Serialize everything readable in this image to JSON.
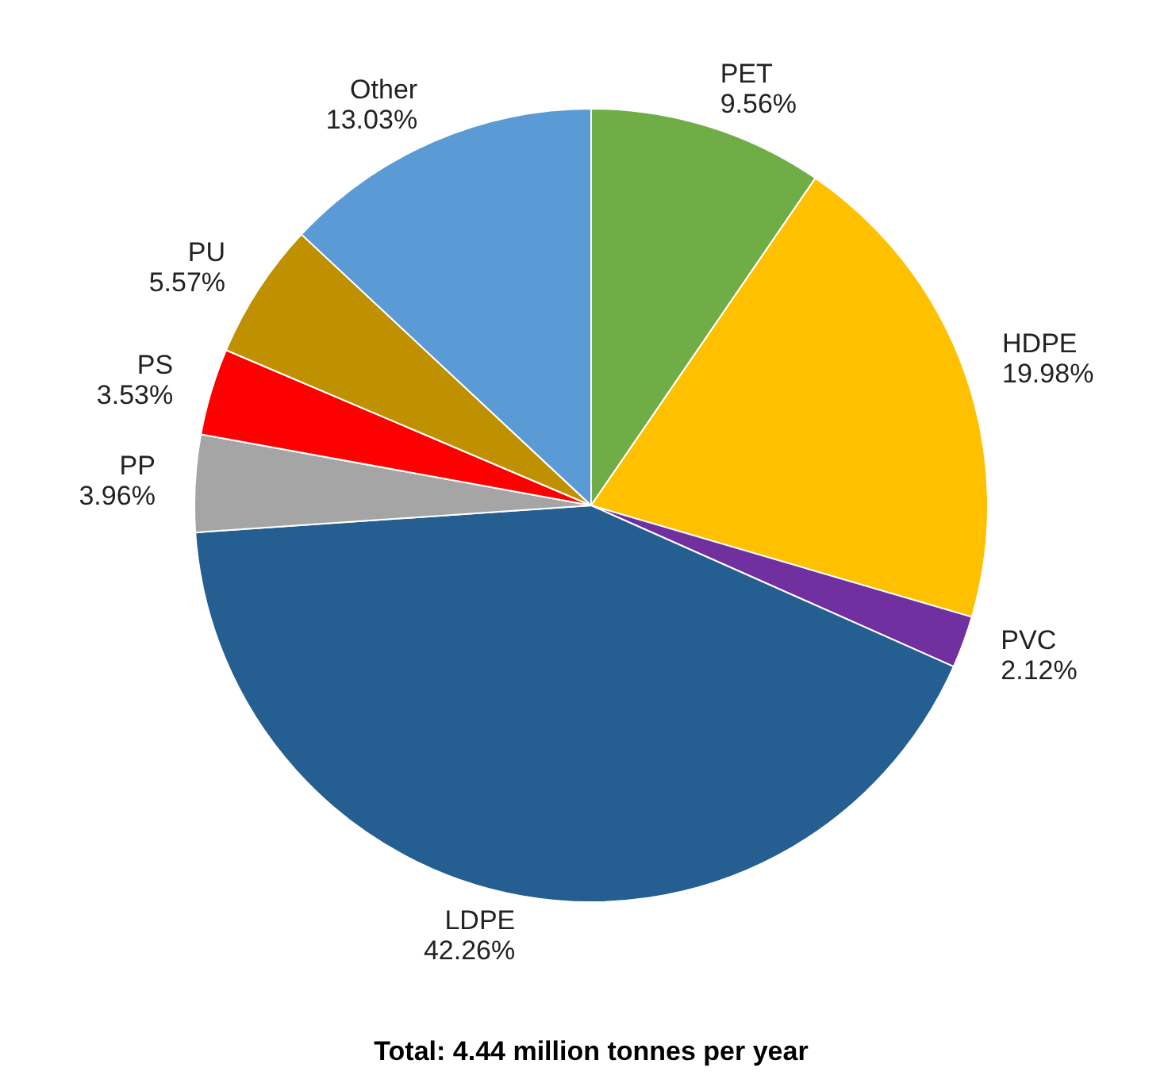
{
  "chart_data": {
    "type": "pie",
    "categories": [
      "PET",
      "HDPE",
      "PVC",
      "LDPE",
      "PP",
      "PS",
      "PU",
      "Other"
    ],
    "values": [
      9.56,
      19.98,
      2.12,
      42.26,
      3.96,
      3.53,
      5.57,
      13.03
    ],
    "value_labels": [
      "9.56%",
      "19.98%",
      "2.12%",
      "42.26%",
      "3.96%",
      "3.53%",
      "5.57%",
      "13.03%"
    ],
    "colors": [
      "#70ad47",
      "#ffc000",
      "#7030a0",
      "#255e91",
      "#a5a5a5",
      "#ff0000",
      "#bf9000",
      "#5b9bd5"
    ],
    "annotations": [
      "Total: 4.44 million tonnes per year"
    ]
  }
}
